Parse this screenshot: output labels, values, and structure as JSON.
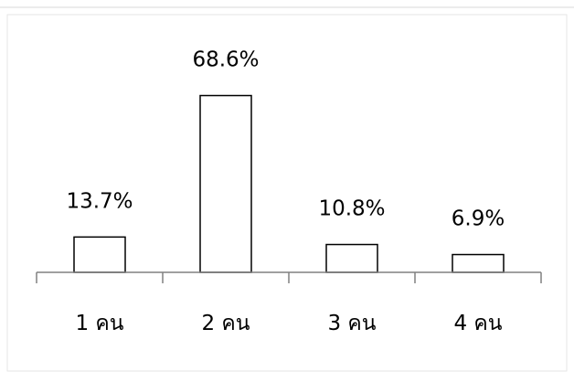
{
  "chart_data": {
    "type": "bar",
    "categories": [
      "1 คน",
      "2 คน",
      "3 คน",
      "4 คน"
    ],
    "values": [
      13.7,
      68.6,
      10.8,
      6.9
    ],
    "data_labels": [
      "13.7%",
      "68.6%",
      "10.8%",
      "6.9%"
    ],
    "ylim": [
      0,
      70
    ],
    "grid": false,
    "legend": "none",
    "bar_fill": "#ffffff",
    "bar_stroke": "#000000",
    "axis_color": "#808080",
    "frame_color": "#d9d9d9"
  }
}
